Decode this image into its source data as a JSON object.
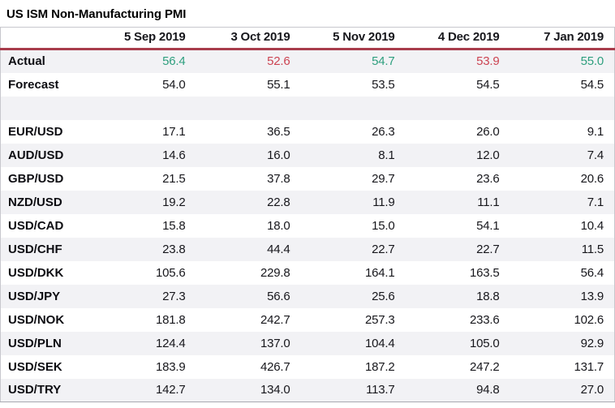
{
  "title": "US ISM Non-Manufacturing PMI",
  "colors": {
    "positive": "#2e9f7e",
    "negative": "#cc4452",
    "header_rule": "#a83c4b",
    "row_alt_bg": "#f2f2f5",
    "table_border": "#c7c7cd"
  },
  "chart_data": {
    "type": "table",
    "title": "US ISM Non-Manufacturing PMI",
    "columns": [
      "5 Sep 2019",
      "3 Oct 2019",
      "5 Nov 2019",
      "4 Dec 2019",
      "7 Jan 2019"
    ],
    "rows": [
      {
        "label": "Actual",
        "values": [
          "56.4",
          "52.6",
          "54.7",
          "53.9",
          "55.0"
        ],
        "value_classes": [
          "positive",
          "negative",
          "positive",
          "negative",
          "positive"
        ]
      },
      {
        "label": "Forecast",
        "values": [
          "54.0",
          "55.1",
          "53.5",
          "54.5",
          "54.5"
        ]
      },
      {
        "label": "",
        "values": [
          "",
          "",
          "",
          "",
          ""
        ],
        "spacer": true
      },
      {
        "label": "EUR/USD",
        "values": [
          "17.1",
          "36.5",
          "26.3",
          "26.0",
          "9.1"
        ]
      },
      {
        "label": "AUD/USD",
        "values": [
          "14.6",
          "16.0",
          "8.1",
          "12.0",
          "7.4"
        ]
      },
      {
        "label": "GBP/USD",
        "values": [
          "21.5",
          "37.8",
          "29.7",
          "23.6",
          "20.6"
        ]
      },
      {
        "label": "NZD/USD",
        "values": [
          "19.2",
          "22.8",
          "11.9",
          "11.1",
          "7.1"
        ]
      },
      {
        "label": "USD/CAD",
        "values": [
          "15.8",
          "18.0",
          "15.0",
          "54.1",
          "10.4"
        ]
      },
      {
        "label": "USD/CHF",
        "values": [
          "23.8",
          "44.4",
          "22.7",
          "22.7",
          "11.5"
        ]
      },
      {
        "label": "USD/DKK",
        "values": [
          "105.6",
          "229.8",
          "164.1",
          "163.5",
          "56.4"
        ]
      },
      {
        "label": "USD/JPY",
        "values": [
          "27.3",
          "56.6",
          "25.6",
          "18.8",
          "13.9"
        ]
      },
      {
        "label": "USD/NOK",
        "values": [
          "181.8",
          "242.7",
          "257.3",
          "233.6",
          "102.6"
        ]
      },
      {
        "label": "USD/PLN",
        "values": [
          "124.4",
          "137.0",
          "104.4",
          "105.0",
          "92.9"
        ]
      },
      {
        "label": "USD/SEK",
        "values": [
          "183.9",
          "426.7",
          "187.2",
          "247.2",
          "131.7"
        ]
      },
      {
        "label": "USD/TRY",
        "values": [
          "142.7",
          "134.0",
          "113.7",
          "94.8",
          "27.0"
        ]
      }
    ]
  }
}
